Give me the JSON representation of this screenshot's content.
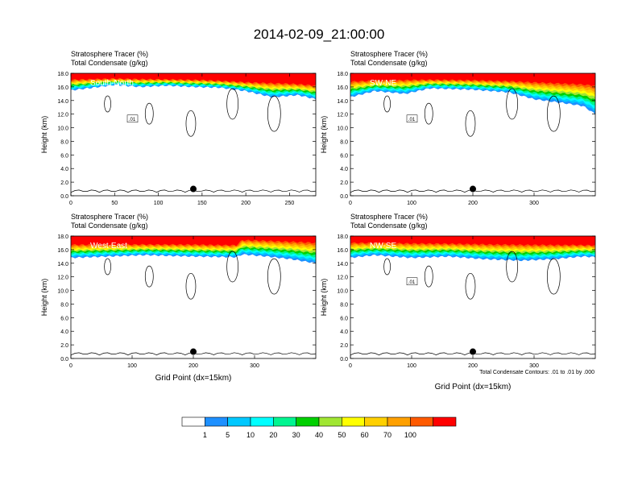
{
  "figure": {
    "title": "2014-02-09_21:00:00",
    "footnote": "Total Condensate Contours: .01 to .01 by .000",
    "colors": {
      "palette": [
        "#ffffff",
        "#1e90ff",
        "#00c8ff",
        "#00ffff",
        "#00f590",
        "#00d000",
        "#a0e632",
        "#ffff00",
        "#ffd000",
        "#ffa000",
        "#ff5a00",
        "#ff0000"
      ],
      "contour": "#000000"
    },
    "colorbar": {
      "labels": [
        "1",
        "5",
        "10",
        "20",
        "30",
        "40",
        "50",
        "60",
        "70",
        "100"
      ]
    }
  },
  "chart_data": [
    {
      "type": "heatmap",
      "panel_name": "South-North",
      "subtitle_line1": "Stratosphere Tracer   (%)",
      "subtitle_line2": "Total Condensate   (g/kg)",
      "ylabel": "Height (km)",
      "xlabel": "",
      "xlim": [
        0,
        280
      ],
      "ylim": [
        0,
        18
      ],
      "xticks": [
        "0",
        "50",
        "100",
        "150",
        "200",
        "250"
      ],
      "xtick_values": [
        0,
        50,
        100,
        150,
        200,
        250
      ],
      "yticks": [
        "0.0",
        "2.0",
        "4.0",
        "6.0",
        "8.0",
        "10.0",
        "12.0",
        "14.0",
        "16.0",
        "18.0"
      ],
      "contour_label": ".01",
      "marker": {
        "x": 140,
        "y": 1.0
      },
      "tropopause_base": [
        [
          0,
          15.5
        ],
        [
          20,
          15.8
        ],
        [
          50,
          16.3
        ],
        [
          80,
          16.0
        ],
        [
          110,
          16.2
        ],
        [
          140,
          16.0
        ],
        [
          170,
          15.9
        ],
        [
          200,
          15.4
        ],
        [
          230,
          14.5
        ],
        [
          260,
          14.8
        ],
        [
          280,
          14.2
        ]
      ],
      "tropopause_peak": [
        [
          0,
          17.2
        ],
        [
          50,
          17.3
        ],
        [
          100,
          17.2
        ],
        [
          150,
          17.1
        ],
        [
          200,
          16.8
        ],
        [
          240,
          16.7
        ],
        [
          280,
          16.4
        ]
      ]
    },
    {
      "type": "heatmap",
      "panel_name": "SW-NE",
      "subtitle_line1": "Stratosphere Tracer   (%)",
      "subtitle_line2": "Total Condensate   (g/kg)",
      "ylabel": "Height (km)",
      "xlabel": "",
      "xlim": [
        0,
        400
      ],
      "ylim": [
        0,
        18
      ],
      "xticks": [
        "0",
        "100",
        "200",
        "300"
      ],
      "xtick_values": [
        0,
        100,
        200,
        300
      ],
      "yticks": [
        "0.0",
        "2.0",
        "4.0",
        "6.0",
        "8.0",
        "10.0",
        "12.0",
        "14.0",
        "16.0",
        "18.0"
      ],
      "contour_label": ".01",
      "marker": {
        "x": 200,
        "y": 1.0
      },
      "tropopause_base": [
        [
          0,
          14.5
        ],
        [
          40,
          15.4
        ],
        [
          90,
          15.0
        ],
        [
          130,
          15.8
        ],
        [
          200,
          15.6
        ],
        [
          260,
          15.2
        ],
        [
          300,
          14.2
        ],
        [
          350,
          13.6
        ],
        [
          380,
          13.2
        ],
        [
          400,
          12.0
        ]
      ],
      "tropopause_peak": [
        [
          0,
          17.0
        ],
        [
          100,
          17.2
        ],
        [
          200,
          17.1
        ],
        [
          300,
          16.9
        ],
        [
          400,
          16.6
        ]
      ]
    },
    {
      "type": "heatmap",
      "panel_name": "West-East",
      "subtitle_line1": "Stratosphere Tracer   (%)",
      "subtitle_line2": "Total Condensate   (g/kg)",
      "ylabel": "Height (km)",
      "xlabel": "Grid Point (dx=15km)",
      "xlim": [
        0,
        400
      ],
      "ylim": [
        0,
        18
      ],
      "xticks": [
        "0",
        "100",
        "200",
        "300"
      ],
      "xtick_values": [
        0,
        100,
        200,
        300
      ],
      "yticks": [
        "0.0",
        "2.0",
        "4.0",
        "6.0",
        "8.0",
        "10.0",
        "12.0",
        "14.0",
        "16.0",
        "18.0"
      ],
      "contour_label": "",
      "marker": {
        "x": 200,
        "y": 1.0
      },
      "tropopause_base": [
        [
          0,
          14.8
        ],
        [
          60,
          15.0
        ],
        [
          120,
          15.2
        ],
        [
          200,
          15.0
        ],
        [
          270,
          14.9
        ],
        [
          280,
          15.3
        ],
        [
          320,
          15.0
        ],
        [
          360,
          14.6
        ],
        [
          400,
          14.0
        ]
      ],
      "tropopause_peak": [
        [
          0,
          16.9
        ],
        [
          100,
          16.9
        ],
        [
          200,
          16.9
        ],
        [
          270,
          16.8
        ],
        [
          280,
          17.6
        ],
        [
          400,
          17.3
        ]
      ]
    },
    {
      "type": "heatmap",
      "panel_name": "NW-SE",
      "subtitle_line1": "Stratosphere Tracer   (%)",
      "subtitle_line2": "Total Condensate   (g/kg)",
      "ylabel": "Height (km)",
      "xlabel": "Grid Point (dx=15km)",
      "xlim": [
        0,
        400
      ],
      "ylim": [
        0,
        18
      ],
      "xticks": [
        "0",
        "100",
        "200",
        "300"
      ],
      "xtick_values": [
        0,
        100,
        200,
        300
      ],
      "yticks": [
        "0.0",
        "2.0",
        "4.0",
        "6.0",
        "8.0",
        "10.0",
        "12.0",
        "14.0",
        "16.0",
        "18.0"
      ],
      "contour_label": ".01",
      "marker": {
        "x": 200,
        "y": 1.0
      },
      "tropopause_base": [
        [
          0,
          14.8
        ],
        [
          40,
          15.2
        ],
        [
          100,
          14.8
        ],
        [
          160,
          15.0
        ],
        [
          220,
          14.6
        ],
        [
          280,
          14.4
        ],
        [
          330,
          14.6
        ],
        [
          380,
          15.0
        ],
        [
          400,
          14.9
        ]
      ],
      "tropopause_peak": [
        [
          0,
          17.2
        ],
        [
          100,
          17.1
        ],
        [
          200,
          17.0
        ],
        [
          300,
          16.9
        ],
        [
          400,
          16.8
        ]
      ]
    }
  ]
}
